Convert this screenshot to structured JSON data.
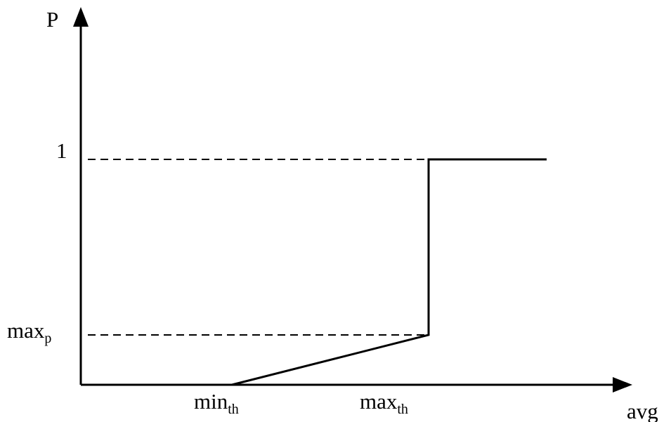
{
  "diagram": {
    "y_axis_label": "P",
    "x_axis_label": "avg",
    "y_tick_one": "1",
    "y_tick_maxp": {
      "base": "max",
      "sub": "p"
    },
    "x_tick_minth": {
      "base": "min",
      "sub": "th"
    },
    "x_tick_maxth": {
      "base": "max",
      "sub": "th"
    }
  },
  "colors": {
    "line": "#000000",
    "background": "#ffffff"
  }
}
